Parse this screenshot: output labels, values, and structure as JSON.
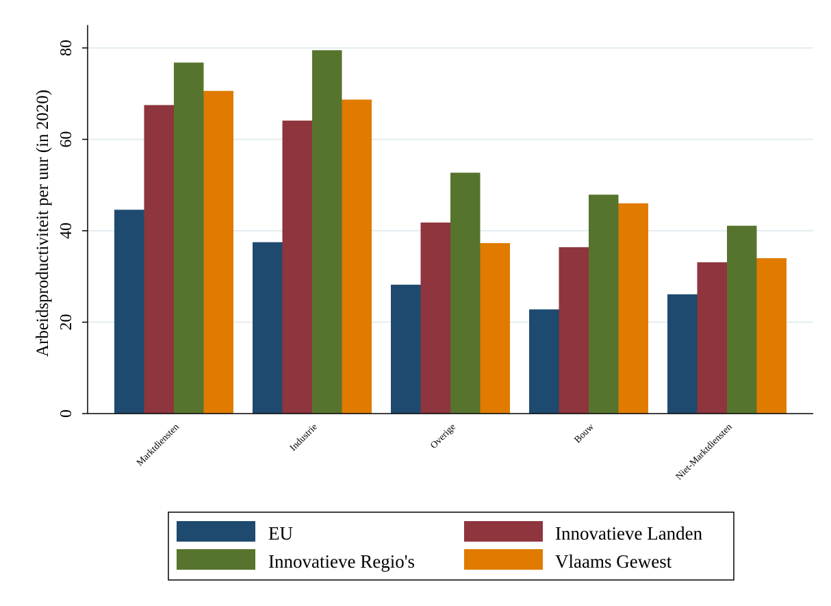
{
  "chart_data": {
    "type": "bar",
    "title": "",
    "xlabel": "",
    "ylabel": "Arbeidsproductiviteit per uur (in 2020)",
    "ylim": [
      0,
      85
    ],
    "yticks": [
      0,
      20,
      40,
      60,
      80
    ],
    "grid": true,
    "legend_position": "bottom",
    "categories": [
      "Marktdiensten",
      "Industrie",
      "Overige",
      "Bouw",
      "Niet-Marktdiensten"
    ],
    "series": [
      {
        "name": "EU",
        "color": "#1f4a6f",
        "values": [
          44.6,
          37.5,
          28.2,
          22.8,
          26.1
        ]
      },
      {
        "name": "Innovatieve Landen",
        "color": "#8e353d",
        "values": [
          67.5,
          64.1,
          41.8,
          36.4,
          33.1
        ]
      },
      {
        "name": "Innovatieve Regio's",
        "color": "#57742e",
        "values": [
          76.8,
          79.5,
          52.7,
          47.9,
          41.1
        ]
      },
      {
        "name": "Vlaams Gewest",
        "color": "#e07b00",
        "values": [
          70.6,
          68.7,
          37.3,
          46.0,
          34.0
        ]
      }
    ]
  }
}
